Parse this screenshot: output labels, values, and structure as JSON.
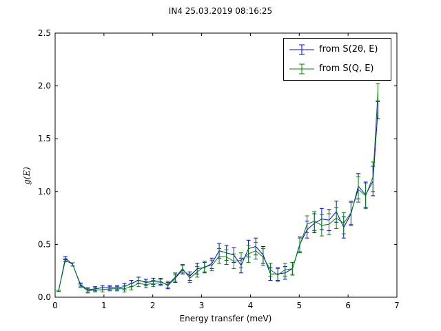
{
  "chart_data": {
    "type": "line",
    "title": "IN4 25.03.2019 08:16:25",
    "xlabel": "Energy transfer (meV)",
    "ylabel": "g(E)",
    "xlim": [
      0,
      7
    ],
    "ylim": [
      0,
      2.5
    ],
    "xticks": [
      "0",
      "1",
      "2",
      "3",
      "4",
      "5",
      "6",
      "7"
    ],
    "yticks": [
      "0.0",
      "0.5",
      "1.0",
      "1.5",
      "2.0",
      "2.5"
    ],
    "grid": false,
    "legend_position": "top-right",
    "x": [
      0.07,
      0.21,
      0.36,
      0.52,
      0.67,
      0.82,
      0.97,
      1.12,
      1.27,
      1.42,
      1.56,
      1.71,
      1.86,
      2.01,
      2.16,
      2.31,
      2.46,
      2.61,
      2.76,
      2.91,
      3.06,
      3.21,
      3.36,
      3.51,
      3.66,
      3.81,
      3.96,
      4.11,
      4.26,
      4.41,
      4.56,
      4.71,
      4.86,
      5.01,
      5.16,
      5.31,
      5.46,
      5.61,
      5.76,
      5.91,
      6.06,
      6.21,
      6.36,
      6.51,
      6.61
    ],
    "series": [
      {
        "name": "from S(2θ, E)",
        "color": "#0000ff",
        "values": [
          0.06,
          0.37,
          0.31,
          0.12,
          0.07,
          0.08,
          0.09,
          0.09,
          0.09,
          0.1,
          0.13,
          0.16,
          0.14,
          0.15,
          0.15,
          0.11,
          0.18,
          0.26,
          0.2,
          0.27,
          0.28,
          0.32,
          0.44,
          0.42,
          0.4,
          0.3,
          0.46,
          0.48,
          0.4,
          0.22,
          0.22,
          0.23,
          0.27,
          0.5,
          0.64,
          0.7,
          0.74,
          0.73,
          0.81,
          0.66,
          0.79,
          1.05,
          0.97,
          1.1,
          1.77
        ],
        "errors": [
          0.005,
          0.015,
          0.015,
          0.015,
          0.02,
          0.02,
          0.02,
          0.02,
          0.02,
          0.03,
          0.03,
          0.03,
          0.03,
          0.03,
          0.03,
          0.03,
          0.04,
          0.04,
          0.04,
          0.05,
          0.05,
          0.05,
          0.07,
          0.07,
          0.07,
          0.07,
          0.08,
          0.08,
          0.08,
          0.06,
          0.06,
          0.06,
          0.06,
          0.07,
          0.08,
          0.09,
          0.1,
          0.1,
          0.1,
          0.1,
          0.11,
          0.12,
          0.12,
          0.14,
          0.08
        ]
      },
      {
        "name": "from S(Q, E)",
        "color": "#008000",
        "values": [
          0.06,
          0.35,
          0.31,
          0.11,
          0.06,
          0.07,
          0.07,
          0.08,
          0.08,
          0.08,
          0.1,
          0.13,
          0.12,
          0.13,
          0.14,
          0.12,
          0.19,
          0.27,
          0.18,
          0.24,
          0.29,
          0.3,
          0.39,
          0.38,
          0.34,
          0.35,
          0.41,
          0.44,
          0.38,
          0.26,
          0.21,
          0.26,
          0.27,
          0.49,
          0.69,
          0.72,
          0.68,
          0.69,
          0.75,
          0.7,
          0.8,
          1.02,
          0.96,
          1.14,
          1.94
        ]
      }
    ]
  }
}
